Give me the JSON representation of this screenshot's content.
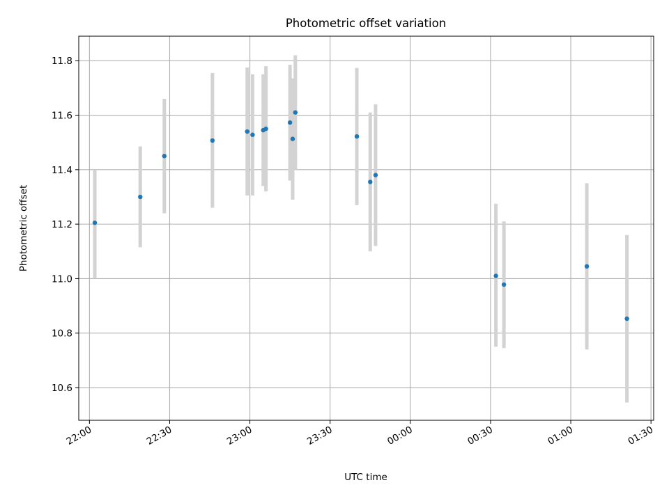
{
  "chart_data": {
    "type": "scatter",
    "title": "Photometric offset variation",
    "xlabel": "UTC time",
    "ylabel": "Photometric offset",
    "x_unit": "UTC time (HH:MM), spanning midnight",
    "xlim": [
      "21:56",
      "01:31"
    ],
    "ylim": [
      10.48,
      11.89
    ],
    "x_ticks": [
      "22:00",
      "22:30",
      "23:00",
      "23:30",
      "00:00",
      "00:30",
      "01:00",
      "01:30"
    ],
    "y_ticks": [
      "10.6",
      "10.8",
      "11.0",
      "11.2",
      "11.4",
      "11.6",
      "11.8"
    ],
    "grid": true,
    "marker_color": "#1f77b4",
    "errorbar_color": "#d3d3d3",
    "series": [
      {
        "points": [
          {
            "x": "22:02",
            "y": 11.205,
            "err_low": 11.0,
            "err_high": 11.4
          },
          {
            "x": "22:19",
            "y": 11.3,
            "err_low": 11.115,
            "err_high": 11.485
          },
          {
            "x": "22:28",
            "y": 11.45,
            "err_low": 11.24,
            "err_high": 11.66
          },
          {
            "x": "22:46",
            "y": 11.507,
            "err_low": 11.26,
            "err_high": 11.755
          },
          {
            "x": "22:59",
            "y": 11.54,
            "err_low": 11.305,
            "err_high": 11.775
          },
          {
            "x": "23:01",
            "y": 11.528,
            "err_low": 11.305,
            "err_high": 11.75
          },
          {
            "x": "23:05",
            "y": 11.545,
            "err_low": 11.34,
            "err_high": 11.75
          },
          {
            "x": "23:06",
            "y": 11.55,
            "err_low": 11.32,
            "err_high": 11.78
          },
          {
            "x": "23:15",
            "y": 11.573,
            "err_low": 11.36,
            "err_high": 11.785
          },
          {
            "x": "23:16",
            "y": 11.513,
            "err_low": 11.29,
            "err_high": 11.735
          },
          {
            "x": "23:17",
            "y": 11.61,
            "err_low": 11.4,
            "err_high": 11.82
          },
          {
            "x": "23:40",
            "y": 11.522,
            "err_low": 11.27,
            "err_high": 11.773
          },
          {
            "x": "23:45",
            "y": 11.355,
            "err_low": 11.1,
            "err_high": 11.61
          },
          {
            "x": "23:47",
            "y": 11.38,
            "err_low": 11.12,
            "err_high": 11.64
          },
          {
            "x": "00:32",
            "y": 11.01,
            "err_low": 10.75,
            "err_high": 11.275
          },
          {
            "x": "00:35",
            "y": 10.978,
            "err_low": 10.745,
            "err_high": 11.21
          },
          {
            "x": "01:06",
            "y": 11.045,
            "err_low": 10.74,
            "err_high": 11.35
          },
          {
            "x": "01:21",
            "y": 10.853,
            "err_low": 10.545,
            "err_high": 11.16
          }
        ]
      }
    ]
  }
}
